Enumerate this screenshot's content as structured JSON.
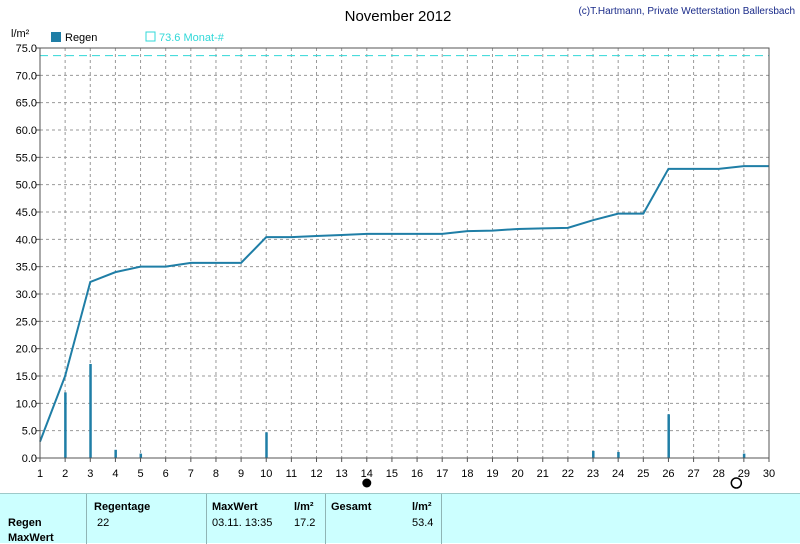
{
  "title": "November 2012",
  "copyright": "(c)T.Hartmann, Private Wetterstation Ballersbach",
  "unit_label": "l/m²",
  "legend": {
    "series_label": "Regen",
    "reference_label": "73.6 Monat-#",
    "series_color": "#1f7ea6",
    "reference_color": "#30d8d8"
  },
  "stats": {
    "row_labels": [
      "Regen",
      "MaxWert"
    ],
    "regentage_header": "Regentage",
    "regentage_value": "22",
    "maxwert_header": "MaxWert",
    "maxwert_unit": "l/m²",
    "maxwert_time": "03.11.  13:35",
    "maxwert_value": "17.2",
    "gesamt_header": "Gesamt",
    "gesamt_unit": "l/m²",
    "gesamt_value": "53.4"
  },
  "chart_data": {
    "type": "bar",
    "title": "November 2012",
    "ylabel": "l/m²",
    "xlim": [
      1,
      30
    ],
    "ylim": [
      0,
      75
    ],
    "yticks": [
      "0.0",
      "5.0",
      "10.0",
      "15.0",
      "20.0",
      "25.0",
      "30.0",
      "35.0",
      "40.0",
      "45.0",
      "50.0",
      "55.0",
      "60.0",
      "65.0",
      "70.0",
      "75.0"
    ],
    "xticks": [
      "1",
      "2",
      "3",
      "4",
      "5",
      "6",
      "7",
      "8",
      "9",
      "10",
      "11",
      "12",
      "13",
      "14",
      "15",
      "16",
      "17",
      "18",
      "19",
      "20",
      "21",
      "22",
      "23",
      "24",
      "25",
      "26",
      "27",
      "28",
      "29",
      "30"
    ],
    "grid": true,
    "reference_line": {
      "value": 73.6,
      "name": "73.6 Monat-#"
    },
    "series": [
      {
        "name": "Regen",
        "type": "bar",
        "x": [
          2,
          3,
          4,
          5,
          10,
          23,
          24,
          26,
          29
        ],
        "values": [
          12.0,
          17.2,
          1.5,
          0.8,
          4.7,
          1.3,
          1.1,
          8.0,
          0.8
        ]
      },
      {
        "name": "Regen cumulative",
        "type": "line",
        "x": [
          1,
          2,
          3,
          4,
          5,
          6,
          7,
          8,
          9,
          10,
          11,
          12,
          13,
          14,
          15,
          16,
          17,
          18,
          19,
          20,
          21,
          22,
          23,
          24,
          25,
          26,
          27,
          28,
          29,
          30
        ],
        "values": [
          3.0,
          15.0,
          32.2,
          34.0,
          35.0,
          35.0,
          35.7,
          35.7,
          35.7,
          40.4,
          40.4,
          40.6,
          40.8,
          41.0,
          41.0,
          41.0,
          41.0,
          41.5,
          41.6,
          41.9,
          42.0,
          42.1,
          43.5,
          44.7,
          44.7,
          52.9,
          52.9,
          52.9,
          53.4,
          53.4
        ]
      }
    ],
    "markers": [
      {
        "x": 14,
        "symbol": "new-moon"
      },
      {
        "x": 28.7,
        "symbol": "full-moon"
      }
    ]
  }
}
